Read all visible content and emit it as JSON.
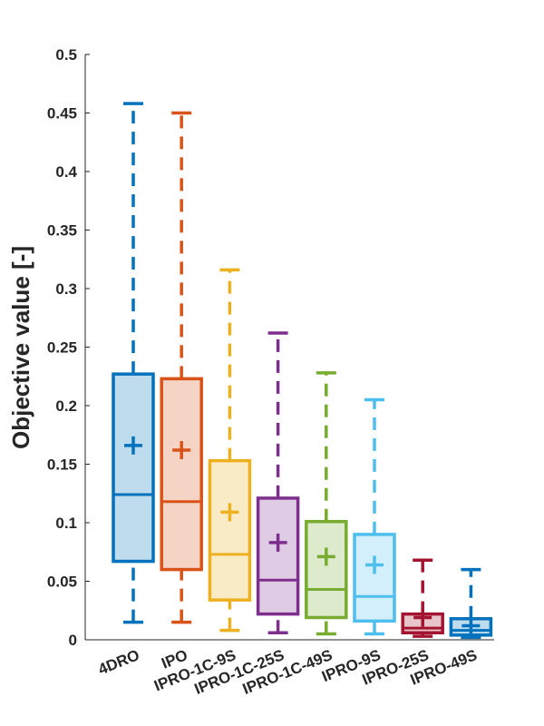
{
  "chart_data": {
    "type": "boxplot",
    "title": "",
    "xlabel": "",
    "ylabel": "Objective value [-]",
    "ylim": [
      0,
      0.5
    ],
    "yticks": [
      0,
      0.05,
      0.1,
      0.15,
      0.2,
      0.25,
      0.3,
      0.35,
      0.4,
      0.45,
      0.5
    ],
    "ytick_labels": [
      "0",
      "0.05",
      "0.1",
      "0.15",
      "0.2",
      "0.25",
      "0.3",
      "0.35",
      "0.4",
      "0.45",
      "0.5"
    ],
    "categories": [
      "4DRO",
      "IPO",
      "IPRO-1C-9S",
      "IPRO-1C-25S",
      "IPRO-1C-49S",
      "IPRO-9S",
      "IPRO-25S",
      "IPRO-49S"
    ],
    "boxes": [
      {
        "name": "4DRO",
        "color": "#0072BD",
        "whisker_low": 0.015,
        "q1": 0.067,
        "median": 0.124,
        "q3": 0.227,
        "whisker_high": 0.458,
        "mean": 0.166
      },
      {
        "name": "IPO",
        "color": "#D95319",
        "whisker_low": 0.015,
        "q1": 0.06,
        "median": 0.118,
        "q3": 0.223,
        "whisker_high": 0.45,
        "mean": 0.162
      },
      {
        "name": "IPRO-1C-9S",
        "color": "#EDB120",
        "whisker_low": 0.008,
        "q1": 0.034,
        "median": 0.073,
        "q3": 0.153,
        "whisker_high": 0.316,
        "mean": 0.109
      },
      {
        "name": "IPRO-1C-25S",
        "color": "#7E2F8E",
        "whisker_low": 0.006,
        "q1": 0.022,
        "median": 0.051,
        "q3": 0.121,
        "whisker_high": 0.262,
        "mean": 0.083
      },
      {
        "name": "IPRO-1C-49S",
        "color": "#77AC30",
        "whisker_low": 0.005,
        "q1": 0.019,
        "median": 0.043,
        "q3": 0.101,
        "whisker_high": 0.228,
        "mean": 0.071
      },
      {
        "name": "IPRO-9S",
        "color": "#4DBEEE",
        "whisker_low": 0.005,
        "q1": 0.016,
        "median": 0.037,
        "q3": 0.09,
        "whisker_high": 0.205,
        "mean": 0.064
      },
      {
        "name": "IPRO-25S",
        "color": "#A2142F",
        "whisker_low": 0.003,
        "q1": 0.006,
        "median": 0.01,
        "q3": 0.022,
        "whisker_high": 0.068,
        "mean": 0.019
      },
      {
        "name": "IPRO-49S",
        "color": "#0072BD",
        "whisker_low": 0.002,
        "q1": 0.004,
        "median": 0.008,
        "q3": 0.018,
        "whisker_high": 0.06,
        "mean": 0.012
      }
    ]
  }
}
